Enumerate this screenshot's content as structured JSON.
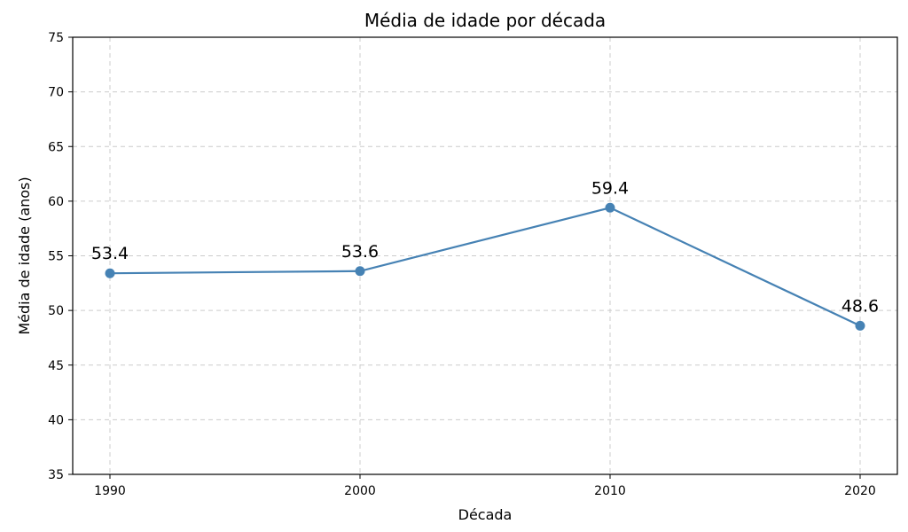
{
  "chart_data": {
    "type": "line",
    "title": "Média de idade por década",
    "xlabel": "Década",
    "ylabel": "Média de idade (anos)",
    "x": [
      "1990",
      "2000",
      "2010",
      "2020"
    ],
    "series": [
      {
        "values": [
          53.4,
          53.6,
          59.4,
          48.6
        ],
        "labels": [
          "53.4",
          "53.6",
          "59.4",
          "48.6"
        ],
        "color": "#4682b4"
      }
    ],
    "ylim": [
      35,
      75
    ],
    "yticks": [
      35,
      40,
      45,
      50,
      55,
      60,
      65,
      70,
      75
    ],
    "yticklabels": [
      "35",
      "40",
      "45",
      "50",
      "55",
      "60",
      "65",
      "70",
      "75"
    ],
    "grid": true,
    "marker": "circle",
    "data_labels": true
  }
}
